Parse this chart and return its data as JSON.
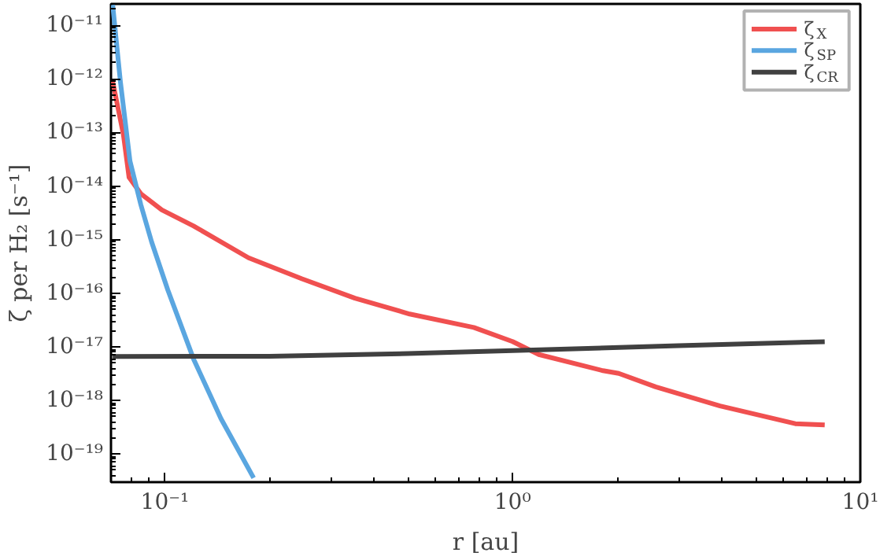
{
  "chart_data": {
    "type": "line",
    "xlabel": "r [au]",
    "ylabel": "ζ per H₂ [s⁻¹]",
    "log": "xy",
    "xlim": [
      0.07,
      10
    ],
    "ylim": [
      3e-20,
      2.5e-11
    ],
    "xticks": [
      {
        "value": 0.1,
        "label": "10⁻¹"
      },
      {
        "value": 1,
        "label": "10⁰"
      },
      {
        "value": 10,
        "label": "10¹"
      }
    ],
    "yticks": [
      {
        "value": 1e-19,
        "label": "10⁻¹⁹"
      },
      {
        "value": 1e-18,
        "label": "10⁻¹⁸"
      },
      {
        "value": 1e-17,
        "label": "10⁻¹⁷"
      },
      {
        "value": 1e-16,
        "label": "10⁻¹⁶"
      },
      {
        "value": 1e-15,
        "label": "10⁻¹⁵"
      },
      {
        "value": 1e-14,
        "label": "10⁻¹⁴"
      },
      {
        "value": 1e-13,
        "label": "10⁻¹³"
      },
      {
        "value": 1e-12,
        "label": "10⁻¹²"
      },
      {
        "value": 1e-11,
        "label": "10⁻¹¹"
      }
    ],
    "grid": false,
    "legend": "top right",
    "series": [
      {
        "name": "ζ$_{X}$",
        "color": "#f05050",
        "x": [
          0.0708,
          0.076,
          0.0789,
          0.0853,
          0.098,
          0.121,
          0.174,
          0.248,
          0.352,
          0.506,
          0.774,
          1.0,
          1.19,
          1.82,
          2.02,
          2.58,
          3.95,
          6.5,
          7.9
        ],
        "values": [
          8.9e-13,
          9.1e-14,
          1.45e-14,
          7.2e-15,
          3.6e-15,
          1.8e-15,
          4.6e-16,
          1.86e-16,
          8.1e-17,
          4.1e-17,
          2.3e-17,
          1.26e-17,
          7.2e-18,
          3.6e-18,
          3.2e-18,
          1.8e-18,
          7.9e-19,
          3.7e-19,
          3.5e-19
        ]
      },
      {
        "name": "ζ$_{SP}$",
        "color": "#5aa6e0",
        "x": [
          0.0708,
          0.0745,
          0.0794,
          0.0853,
          0.0916,
          0.102,
          0.121,
          0.145,
          0.18
        ],
        "values": [
          2.4e-11,
          8.9e-13,
          2.9e-14,
          4.5e-15,
          9.1e-16,
          1.15e-16,
          5.9e-18,
          4.6e-19,
          3.6e-20
        ]
      },
      {
        "name": "ζ$_{CR}$",
        "color": "#404040",
        "x": [
          0.0708,
          0.2,
          0.5,
          1.0,
          3.0,
          7.9
        ],
        "values": [
          6.6e-18,
          6.7e-18,
          7.5e-18,
          8.5e-18,
          1.05e-17,
          1.25e-17
        ]
      }
    ]
  }
}
